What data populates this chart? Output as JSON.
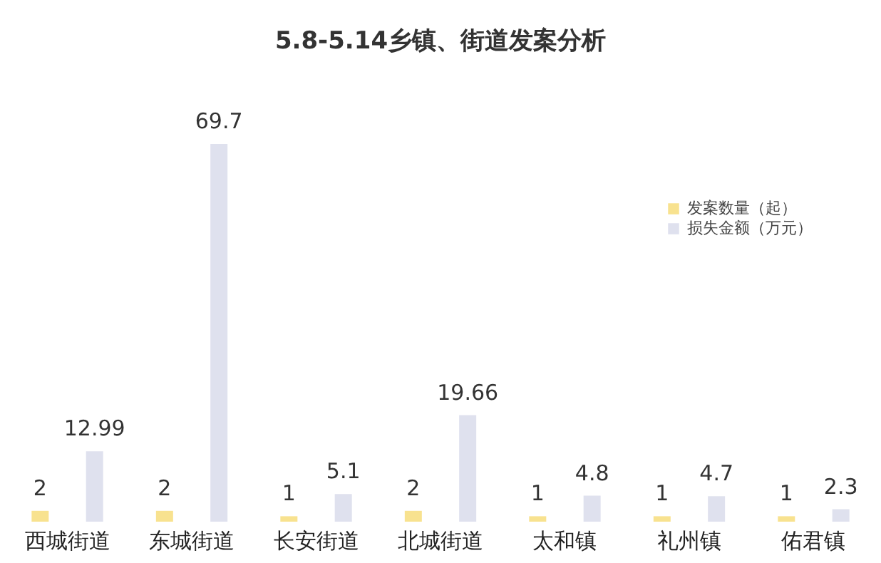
{
  "chart_data": {
    "type": "bar",
    "title": "5.8-5.14乡镇、街道发案分析",
    "categories": [
      "西城街道",
      "东城街道",
      "长安街道",
      "北城街道",
      "太和镇",
      "礼州镇",
      "佑君镇"
    ],
    "series": [
      {
        "name": "发案数量（起）",
        "color": "#f8e28f",
        "values": [
          2,
          2,
          1,
          2,
          1,
          1,
          1
        ]
      },
      {
        "name": "损失金额（万元）",
        "color": "#dfe1ee",
        "values": [
          12.99,
          69.7,
          5.1,
          19.66,
          4.8,
          4.7,
          2.3
        ]
      }
    ],
    "data_labels": true,
    "legend": "top right",
    "grid": false
  }
}
